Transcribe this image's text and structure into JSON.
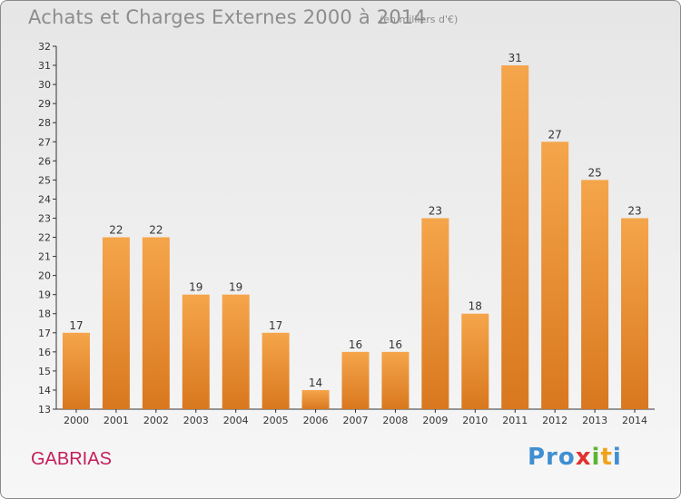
{
  "header": {
    "title": "Achats et Charges Externes 2000 à 2014",
    "unit": "(en milliers d'€)"
  },
  "footer": {
    "commune": "GABRIAS",
    "logo_text": "Proxiti"
  },
  "colors": {
    "bar_top": "#f5a54b",
    "bar_bottom": "#d9781e",
    "commune": "#c41e5a"
  },
  "chart_data": {
    "type": "bar",
    "categories": [
      "2000",
      "2001",
      "2002",
      "2003",
      "2004",
      "2005",
      "2006",
      "2007",
      "2008",
      "2009",
      "2010",
      "2011",
      "2012",
      "2013",
      "2014"
    ],
    "values": [
      17,
      22,
      22,
      19,
      19,
      17,
      14,
      16,
      16,
      23,
      18,
      31,
      27,
      25,
      23
    ],
    "title": "Achats et Charges Externes 2000 à 2014",
    "ylabel": "(en milliers d'€)",
    "ylim": [
      13,
      32
    ],
    "yticks": [
      13,
      14,
      15,
      16,
      17,
      18,
      19,
      20,
      21,
      22,
      23,
      24,
      25,
      26,
      27,
      28,
      29,
      30,
      31,
      32
    ],
    "grid": false,
    "data_labels": true
  }
}
